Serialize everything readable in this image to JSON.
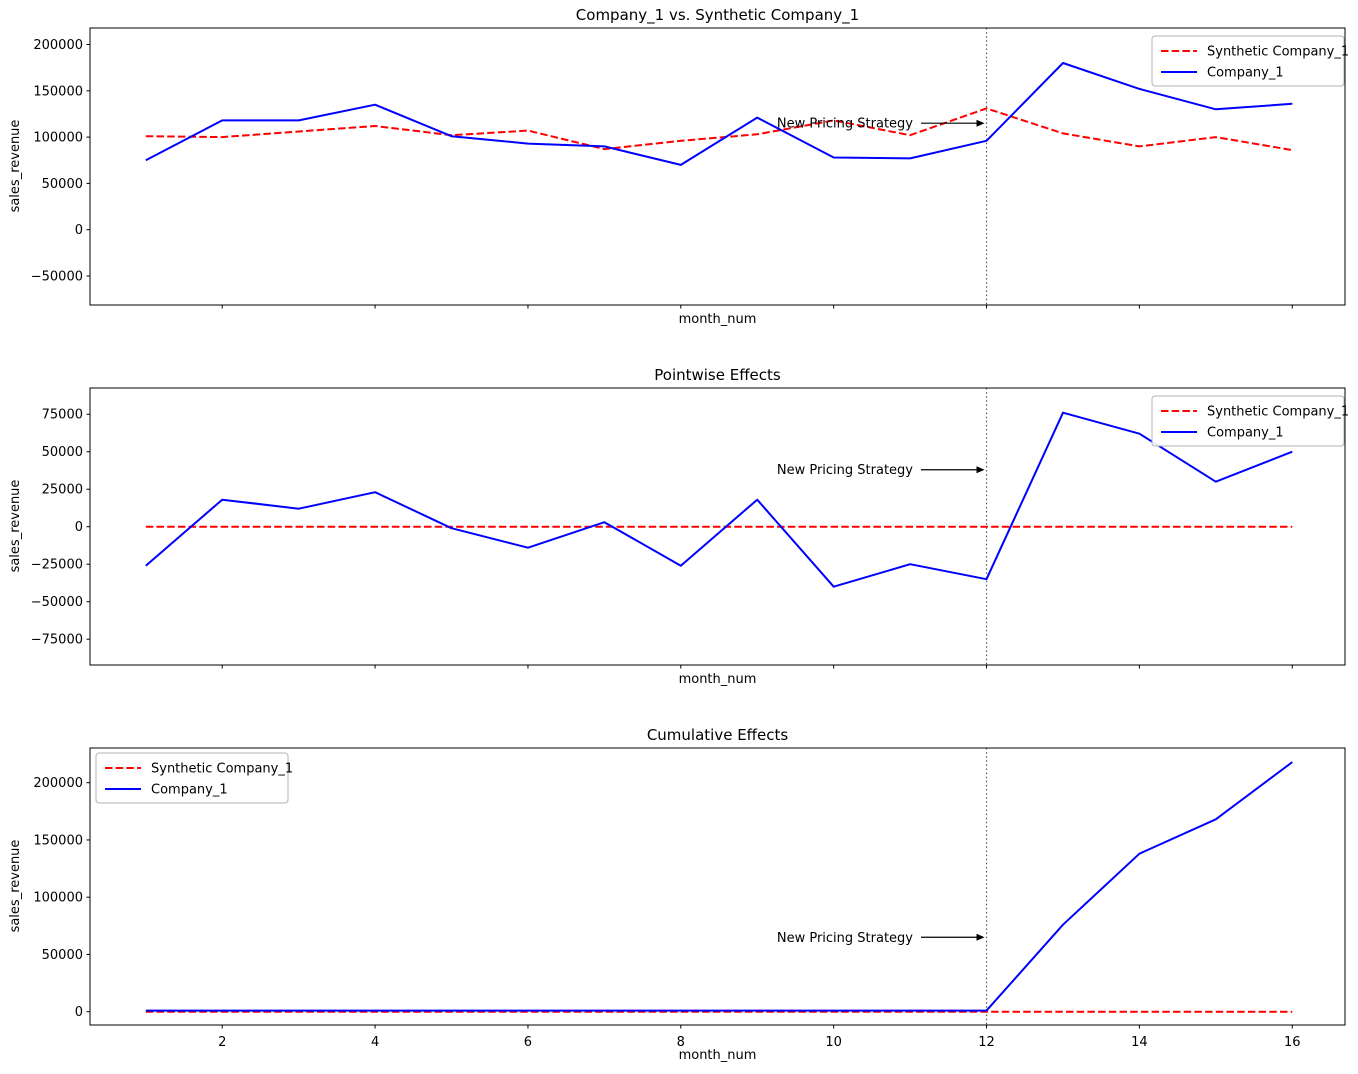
{
  "figure": {
    "annotation_label": "New Pricing Strategy",
    "colors": {
      "company": "#0000ff",
      "synthetic": "#ff0000",
      "event_line": "#555555",
      "text": "#000000",
      "legend_border": "#b3b3b3"
    }
  },
  "chart_data": [
    {
      "type": "line",
      "title": "Company_1 vs. Synthetic Company_1",
      "xlabel": "month_num",
      "ylabel": "sales_revenue",
      "x": [
        1,
        2,
        3,
        4,
        5,
        6,
        7,
        8,
        9,
        10,
        11,
        12,
        13,
        14,
        15,
        16
      ],
      "series": [
        {
          "name": "Synthetic Company_1",
          "color": "#ff0000",
          "style": "dashed",
          "values": [
            101000,
            100000,
            106000,
            112000,
            102000,
            107000,
            87000,
            96000,
            103000,
            118000,
            102000,
            131000,
            104000,
            90000,
            100000,
            86000
          ]
        },
        {
          "name": "Company_1",
          "color": "#0000ff",
          "style": "solid",
          "values": [
            75000,
            118000,
            118000,
            135000,
            101000,
            93000,
            90000,
            70000,
            121000,
            78000,
            77000,
            96000,
            180000,
            152000,
            130000,
            136000
          ]
        }
      ],
      "xlim": [
        0.27,
        16.69
      ],
      "ylim": [
        -81300,
        217800
      ],
      "yticks": [
        -50000,
        0,
        50000,
        100000,
        150000,
        200000
      ],
      "xticks": [
        2,
        4,
        6,
        8,
        10,
        12,
        14,
        16
      ],
      "show_xtick_labels": false,
      "legend": {
        "loc": "upper right",
        "items": [
          "Synthetic Company_1",
          "Company_1"
        ]
      },
      "annotation": {
        "text": "New Pricing Strategy",
        "x": 12,
        "y": 115000
      },
      "event_line": {
        "x": 12,
        "style": "dotted"
      }
    },
    {
      "type": "line",
      "title": "Pointwise Effects",
      "xlabel": "month_num",
      "ylabel": "sales_revenue",
      "x": [
        1,
        2,
        3,
        4,
        5,
        6,
        7,
        8,
        9,
        10,
        11,
        12,
        13,
        14,
        15,
        16
      ],
      "series": [
        {
          "name": "Synthetic Company_1",
          "color": "#ff0000",
          "style": "dashed",
          "values": [
            0,
            0,
            0,
            0,
            0,
            0,
            0,
            0,
            0,
            0,
            0,
            0,
            0,
            0,
            0,
            0
          ]
        },
        {
          "name": "Company_1",
          "color": "#0000ff",
          "style": "solid",
          "values": [
            -26000,
            18000,
            12000,
            23000,
            -1000,
            -14000,
            3000,
            -26000,
            18000,
            -40000,
            -25000,
            -35000,
            76000,
            62000,
            30000,
            50000
          ]
        }
      ],
      "xlim": [
        0.27,
        16.69
      ],
      "ylim": [
        -92200,
        92500
      ],
      "yticks": [
        -75000,
        -50000,
        -25000,
        0,
        25000,
        50000,
        75000
      ],
      "xticks": [
        2,
        4,
        6,
        8,
        10,
        12,
        14,
        16
      ],
      "show_xtick_labels": false,
      "legend": {
        "loc": "upper right",
        "items": [
          "Synthetic Company_1",
          "Company_1"
        ]
      },
      "annotation": {
        "text": "New Pricing Strategy",
        "x": 12,
        "y": 38000
      },
      "event_line": {
        "x": 12,
        "style": "dotted"
      }
    },
    {
      "type": "line",
      "title": "Cumulative Effects",
      "xlabel": "month_num",
      "ylabel": "sales_revenue",
      "x": [
        1,
        2,
        3,
        4,
        5,
        6,
        7,
        8,
        9,
        10,
        11,
        12,
        13,
        14,
        15,
        16
      ],
      "series": [
        {
          "name": "Synthetic Company_1",
          "color": "#ff0000",
          "style": "dashed",
          "values": [
            0,
            0,
            0,
            0,
            0,
            0,
            0,
            0,
            0,
            0,
            0,
            0,
            0,
            0,
            0,
            0
          ]
        },
        {
          "name": "Company_1",
          "color": "#0000ff",
          "style": "solid",
          "values": [
            1000,
            1000,
            1000,
            1000,
            1000,
            1000,
            1000,
            1000,
            1000,
            1000,
            1000,
            1000,
            76000,
            138000,
            168000,
            218000
          ]
        }
      ],
      "xlim": [
        0.27,
        16.69
      ],
      "ylim": [
        -11600,
        230300
      ],
      "yticks": [
        0,
        50000,
        100000,
        150000,
        200000
      ],
      "xticks": [
        2,
        4,
        6,
        8,
        10,
        12,
        14,
        16
      ],
      "show_xtick_labels": true,
      "legend": {
        "loc": "upper left",
        "items": [
          "Synthetic Company_1",
          "Company_1"
        ]
      },
      "annotation": {
        "text": "New Pricing Strategy",
        "x": 12,
        "y": 65000
      },
      "event_line": {
        "x": 12,
        "style": "dotted"
      }
    }
  ]
}
